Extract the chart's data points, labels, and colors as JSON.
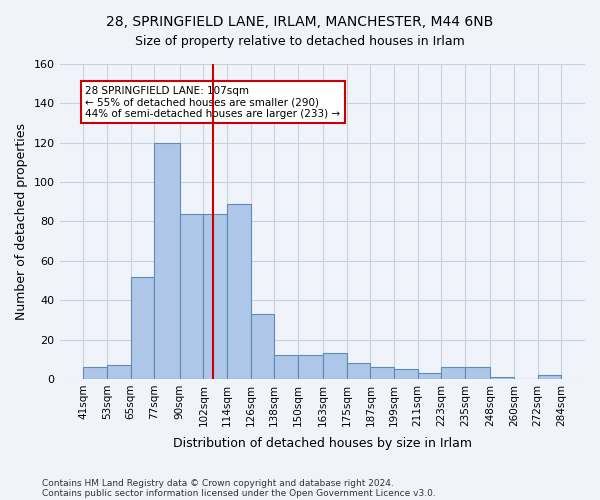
{
  "title_line1": "28, SPRINGFIELD LANE, IRLAM, MANCHESTER, M44 6NB",
  "title_line2": "Size of property relative to detached houses in Irlam",
  "xlabel": "Distribution of detached houses by size in Irlam",
  "ylabel": "Number of detached properties",
  "footer_line1": "Contains HM Land Registry data © Crown copyright and database right 2024.",
  "footer_line2": "Contains public sector information licensed under the Open Government Licence v3.0.",
  "bin_edges": [
    41,
    53,
    65,
    77,
    90,
    102,
    114,
    126,
    138,
    150,
    163,
    175,
    187,
    199,
    211,
    223,
    235,
    248,
    260,
    272,
    284
  ],
  "bin_labels": [
    "41sqm",
    "53sqm",
    "65sqm",
    "77sqm",
    "90sqm",
    "102sqm",
    "114sqm",
    "126sqm",
    "138sqm",
    "150sqm",
    "163sqm",
    "175sqm",
    "187sqm",
    "199sqm",
    "211sqm",
    "223sqm",
    "235sqm",
    "248sqm",
    "260sqm",
    "272sqm",
    "284sqm"
  ],
  "bar_heights": [
    6,
    7,
    52,
    120,
    84,
    84,
    89,
    33,
    12,
    12,
    13,
    8,
    6,
    5,
    3,
    6,
    6,
    1,
    0,
    2
  ],
  "bar_color": "#aec6e8",
  "bar_edge_color": "#5b8db8",
  "property_size": 107,
  "property_line_color": "#cc0000",
  "annotation_text": "28 SPRINGFIELD LANE: 107sqm\n← 55% of detached houses are smaller (290)\n44% of semi-detached houses are larger (233) →",
  "annotation_box_color": "#ffffff",
  "annotation_box_edge_color": "#cc0000",
  "ylim": [
    0,
    160
  ],
  "yticks": [
    0,
    20,
    40,
    60,
    80,
    100,
    120,
    140,
    160
  ],
  "grid_color": "#c8d0dc",
  "bg_color": "#f0f4fa"
}
